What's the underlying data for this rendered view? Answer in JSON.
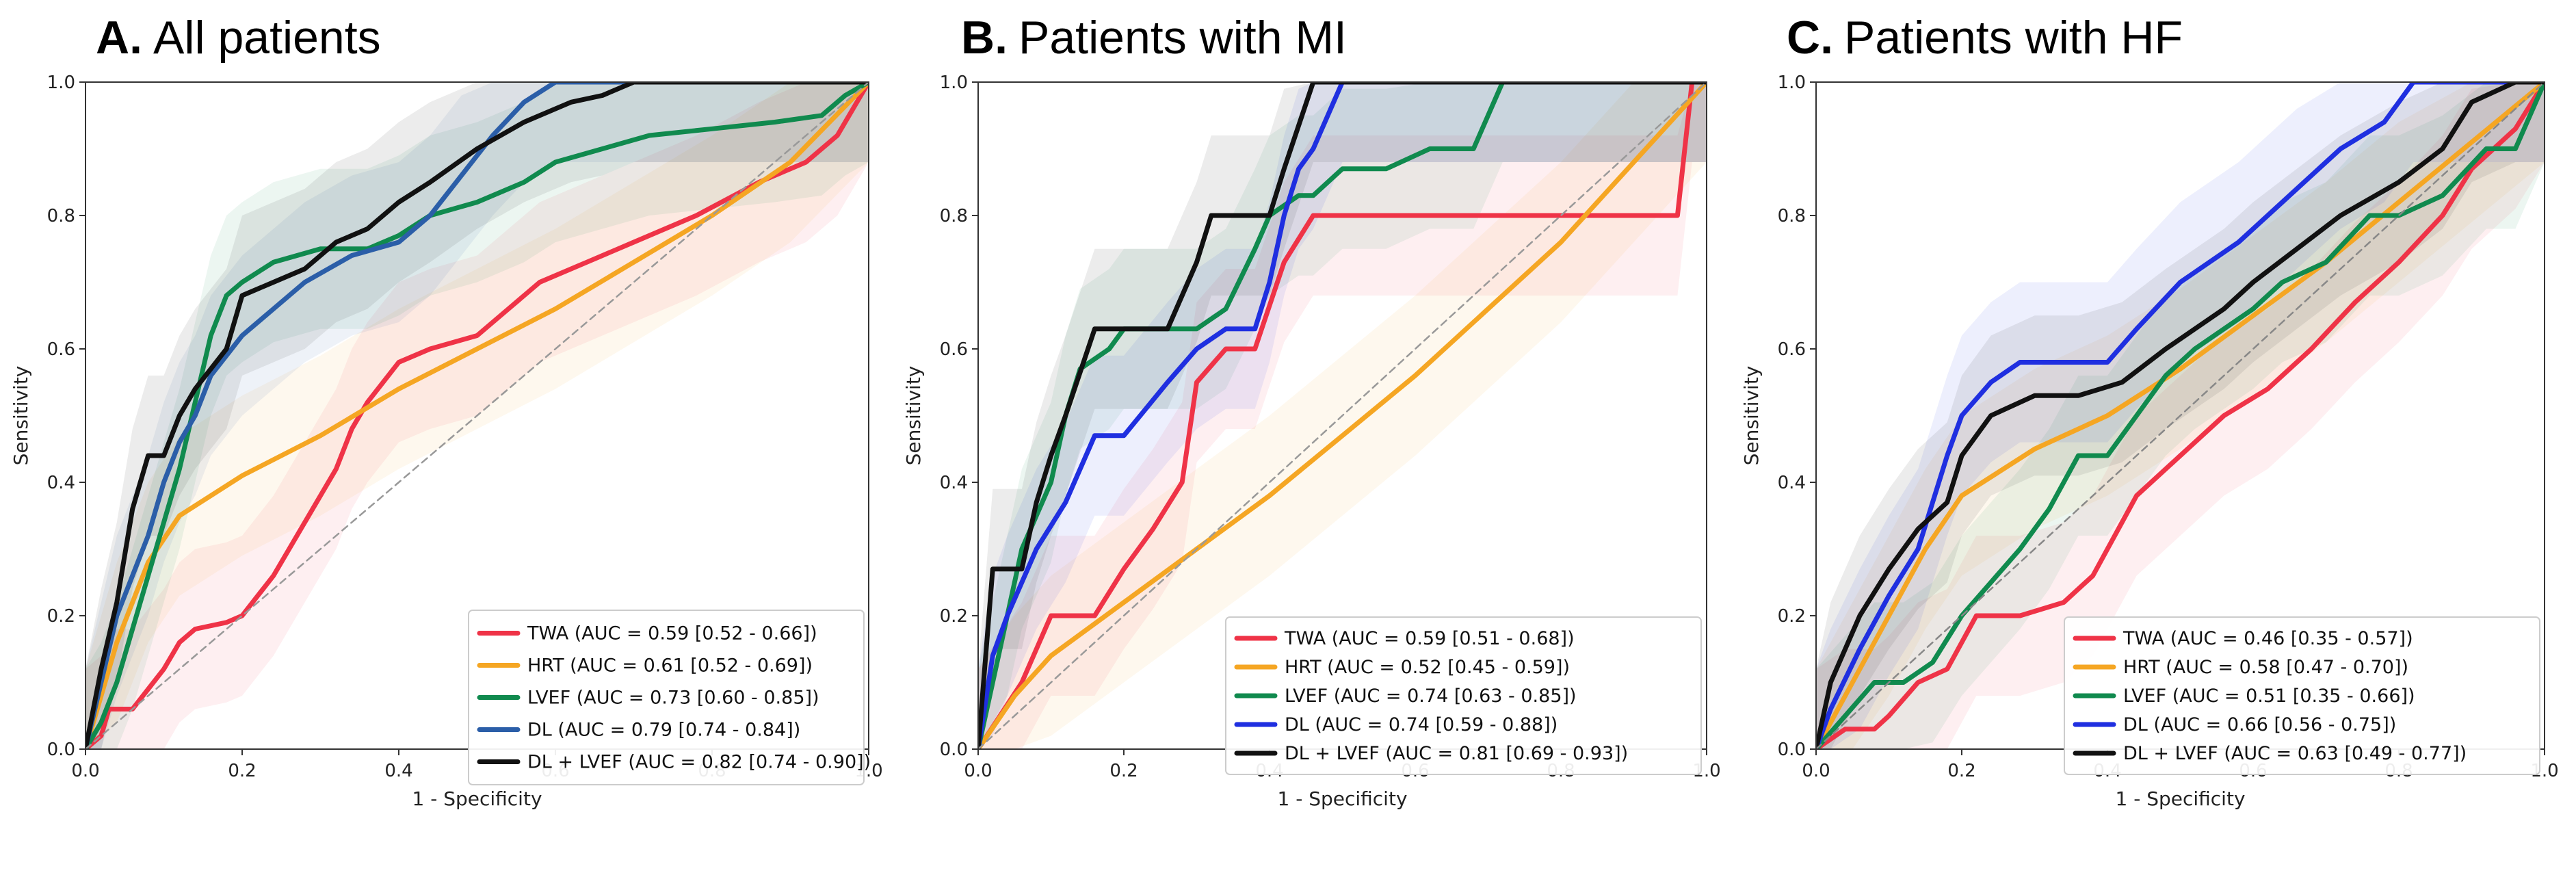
{
  "chart_data": [
    {
      "type": "line",
      "panel_letter": "A.",
      "title": "All patients",
      "xlabel": "1 - Specificity",
      "ylabel": "Sensitivity",
      "xlim": [
        0,
        1
      ],
      "ylim": [
        0,
        1
      ],
      "xticks": [
        "0.0",
        "0.2",
        "0.4",
        "0.6",
        "0.8",
        "1.0"
      ],
      "yticks": [
        "0.0",
        "0.2",
        "0.4",
        "0.6",
        "0.8",
        "1.0"
      ],
      "legend_position": "bottom-right",
      "series": [
        {
          "name": "TWA",
          "legend": "TWA (AUC = 0.59 [0.52 - 0.66])",
          "color": "#ef3347",
          "x": [
            0,
            0.02,
            0.03,
            0.06,
            0.08,
            0.1,
            0.12,
            0.14,
            0.18,
            0.2,
            0.24,
            0.28,
            0.32,
            0.34,
            0.36,
            0.4,
            0.44,
            0.5,
            0.54,
            0.58,
            0.64,
            0.7,
            0.78,
            0.86,
            0.92,
            0.96,
            1
          ],
          "y": [
            0,
            0.02,
            0.06,
            0.06,
            0.09,
            0.12,
            0.16,
            0.18,
            0.19,
            0.2,
            0.26,
            0.34,
            0.42,
            0.48,
            0.52,
            0.58,
            0.6,
            0.62,
            0.66,
            0.7,
            0.73,
            0.76,
            0.8,
            0.85,
            0.88,
            0.92,
            1
          ]
        },
        {
          "name": "HRT",
          "legend": "HRT (AUC = 0.61 [0.52 - 0.69])",
          "color": "#f5a623",
          "x": [
            0,
            0.04,
            0.08,
            0.12,
            0.2,
            0.3,
            0.4,
            0.5,
            0.6,
            0.7,
            0.8,
            0.9,
            1
          ],
          "y": [
            0,
            0.16,
            0.28,
            0.35,
            0.41,
            0.47,
            0.54,
            0.6,
            0.66,
            0.73,
            0.8,
            0.88,
            1
          ]
        },
        {
          "name": "LVEF",
          "legend": "LVEF (AUC = 0.73 [0.60 - 0.85])",
          "color": "#108a4e",
          "x": [
            0,
            0.02,
            0.04,
            0.06,
            0.08,
            0.1,
            0.12,
            0.14,
            0.16,
            0.18,
            0.2,
            0.24,
            0.3,
            0.36,
            0.4,
            0.44,
            0.5,
            0.56,
            0.6,
            0.66,
            0.72,
            0.8,
            0.88,
            0.94,
            0.97,
            1
          ],
          "y": [
            0,
            0.04,
            0.1,
            0.18,
            0.26,
            0.34,
            0.42,
            0.52,
            0.62,
            0.68,
            0.7,
            0.73,
            0.75,
            0.75,
            0.77,
            0.8,
            0.82,
            0.85,
            0.88,
            0.9,
            0.92,
            0.93,
            0.94,
            0.95,
            0.98,
            1
          ]
        },
        {
          "name": "DL",
          "legend": "DL (AUC = 0.79 [0.74 - 0.84])",
          "color": "#2b5ea8",
          "x": [
            0,
            0.02,
            0.04,
            0.06,
            0.08,
            0.1,
            0.12,
            0.14,
            0.16,
            0.2,
            0.24,
            0.28,
            0.34,
            0.4,
            0.44,
            0.48,
            0.52,
            0.56,
            0.6,
            0.7,
            0.8,
            0.9,
            1
          ],
          "y": [
            0,
            0.1,
            0.2,
            0.26,
            0.32,
            0.4,
            0.46,
            0.5,
            0.56,
            0.62,
            0.66,
            0.7,
            0.74,
            0.76,
            0.8,
            0.86,
            0.92,
            0.97,
            1,
            1,
            1,
            1,
            1
          ]
        },
        {
          "name": "DL + LVEF",
          "legend": "DL + LVEF (AUC = 0.82 [0.74 - 0.90])",
          "color": "#111111",
          "x": [
            0,
            0.02,
            0.04,
            0.06,
            0.08,
            0.1,
            0.12,
            0.14,
            0.18,
            0.2,
            0.24,
            0.28,
            0.32,
            0.36,
            0.4,
            0.44,
            0.5,
            0.56,
            0.62,
            0.66,
            0.7,
            0.8,
            0.9,
            1
          ],
          "y": [
            0,
            0.12,
            0.22,
            0.36,
            0.44,
            0.44,
            0.5,
            0.54,
            0.6,
            0.68,
            0.7,
            0.72,
            0.76,
            0.78,
            0.82,
            0.85,
            0.9,
            0.94,
            0.97,
            0.98,
            1,
            1,
            1,
            1
          ]
        },
        {
          "name": "chance",
          "legend": "",
          "color": "#999999",
          "dashed": true,
          "x": [
            0,
            1
          ],
          "y": [
            0,
            1
          ]
        }
      ]
    },
    {
      "type": "line",
      "panel_letter": "B.",
      "title": "Patients with MI",
      "xlabel": "1 - Specificity",
      "ylabel": "Sensitivity",
      "xlim": [
        0,
        1
      ],
      "ylim": [
        0,
        1
      ],
      "xticks": [
        "0.0",
        "0.2",
        "0.4",
        "0.6",
        "0.8",
        "1.0"
      ],
      "yticks": [
        "0.0",
        "0.2",
        "0.4",
        "0.6",
        "0.8",
        "1.0"
      ],
      "legend_position": "bottom-right",
      "series": [
        {
          "name": "TWA",
          "legend": "TWA (AUC = 0.59 [0.51 - 0.68])",
          "color": "#ef3347",
          "x": [
            0,
            0.03,
            0.06,
            0.1,
            0.16,
            0.2,
            0.24,
            0.28,
            0.3,
            0.34,
            0.38,
            0.42,
            0.46,
            0.6,
            0.8,
            0.96,
            0.98,
            1
          ],
          "y": [
            0,
            0.05,
            0.1,
            0.2,
            0.2,
            0.27,
            0.33,
            0.4,
            0.55,
            0.6,
            0.6,
            0.73,
            0.8,
            0.8,
            0.8,
            0.8,
            1,
            1
          ]
        },
        {
          "name": "HRT",
          "legend": "HRT (AUC = 0.52 [0.45 - 0.59])",
          "color": "#f5a623",
          "x": [
            0,
            0.05,
            0.1,
            0.2,
            0.3,
            0.4,
            0.5,
            0.6,
            0.7,
            0.8,
            0.9,
            1
          ],
          "y": [
            0,
            0.08,
            0.14,
            0.22,
            0.3,
            0.38,
            0.47,
            0.56,
            0.66,
            0.76,
            0.88,
            1
          ]
        },
        {
          "name": "LVEF",
          "legend": "LVEF (AUC = 0.74 [0.63 - 0.85])",
          "color": "#108a4e",
          "x": [
            0,
            0.04,
            0.06,
            0.1,
            0.12,
            0.14,
            0.18,
            0.2,
            0.26,
            0.3,
            0.34,
            0.38,
            0.4,
            0.44,
            0.46,
            0.5,
            0.56,
            0.62,
            0.68,
            0.72,
            0.76,
            0.8,
            0.9,
            1
          ],
          "y": [
            0,
            0.2,
            0.3,
            0.4,
            0.5,
            0.57,
            0.6,
            0.63,
            0.63,
            0.63,
            0.66,
            0.75,
            0.8,
            0.83,
            0.83,
            0.87,
            0.87,
            0.9,
            0.9,
            1,
            1,
            1,
            1,
            1
          ]
        },
        {
          "name": "DL",
          "legend": "DL (AUC = 0.74 [0.59 - 0.88])",
          "color": "#1f2fe0",
          "x": [
            0,
            0.02,
            0.04,
            0.08,
            0.12,
            0.16,
            0.2,
            0.26,
            0.3,
            0.34,
            0.38,
            0.4,
            0.42,
            0.44,
            0.46,
            0.5,
            0.6,
            0.8,
            1
          ],
          "y": [
            0,
            0.14,
            0.2,
            0.3,
            0.37,
            0.47,
            0.47,
            0.55,
            0.6,
            0.63,
            0.63,
            0.7,
            0.8,
            0.87,
            0.9,
            1,
            1,
            1,
            1
          ]
        },
        {
          "name": "DL + LVEF",
          "legend": "DL + LVEF (AUC = 0.81 [0.69 - 0.93])",
          "color": "#111111",
          "x": [
            0,
            0.02,
            0.06,
            0.08,
            0.1,
            0.12,
            0.16,
            0.22,
            0.26,
            0.3,
            0.32,
            0.34,
            0.4,
            0.42,
            0.46,
            0.5,
            0.6,
            0.8,
            1
          ],
          "y": [
            0,
            0.27,
            0.27,
            0.37,
            0.44,
            0.5,
            0.63,
            0.63,
            0.63,
            0.73,
            0.8,
            0.8,
            0.8,
            0.87,
            1,
            1,
            1,
            1,
            1
          ]
        },
        {
          "name": "chance",
          "legend": "",
          "color": "#999999",
          "dashed": true,
          "x": [
            0,
            1
          ],
          "y": [
            0,
            1
          ]
        }
      ]
    },
    {
      "type": "line",
      "panel_letter": "C.",
      "title": "Patients with HF",
      "xlabel": "1 - Specificity",
      "ylabel": "Sensitivity",
      "xlim": [
        0,
        1
      ],
      "ylim": [
        0,
        1
      ],
      "xticks": [
        "0.0",
        "0.2",
        "0.4",
        "0.6",
        "0.8",
        "1.0"
      ],
      "yticks": [
        "0.0",
        "0.2",
        "0.4",
        "0.6",
        "0.8",
        "1.0"
      ],
      "legend_position": "bottom-right",
      "series": [
        {
          "name": "TWA",
          "legend": "TWA (AUC = 0.46 [0.35 - 0.57])",
          "color": "#ef3347",
          "x": [
            0,
            0.04,
            0.08,
            0.1,
            0.14,
            0.18,
            0.22,
            0.28,
            0.34,
            0.38,
            0.4,
            0.44,
            0.5,
            0.56,
            0.62,
            0.68,
            0.74,
            0.8,
            0.86,
            0.9,
            0.96,
            1
          ],
          "y": [
            0,
            0.03,
            0.03,
            0.05,
            0.1,
            0.12,
            0.2,
            0.2,
            0.22,
            0.26,
            0.3,
            0.38,
            0.44,
            0.5,
            0.54,
            0.6,
            0.67,
            0.73,
            0.8,
            0.87,
            0.93,
            1
          ]
        },
        {
          "name": "HRT",
          "legend": "HRT (AUC = 0.58 [0.47 - 0.70])",
          "color": "#f5a623",
          "x": [
            0,
            0.05,
            0.1,
            0.15,
            0.2,
            0.3,
            0.4,
            0.5,
            0.6,
            0.7,
            0.8,
            0.9,
            1
          ],
          "y": [
            0,
            0.1,
            0.2,
            0.3,
            0.38,
            0.45,
            0.5,
            0.57,
            0.65,
            0.73,
            0.82,
            0.91,
            1
          ]
        },
        {
          "name": "LVEF",
          "legend": "LVEF (AUC = 0.51 [0.35 - 0.66])",
          "color": "#108a4e",
          "x": [
            0,
            0.04,
            0.08,
            0.12,
            0.16,
            0.2,
            0.24,
            0.28,
            0.32,
            0.36,
            0.4,
            0.44,
            0.48,
            0.52,
            0.56,
            0.6,
            0.64,
            0.7,
            0.76,
            0.8,
            0.86,
            0.92,
            0.96,
            1
          ],
          "y": [
            0,
            0.05,
            0.1,
            0.1,
            0.13,
            0.2,
            0.25,
            0.3,
            0.36,
            0.44,
            0.44,
            0.5,
            0.56,
            0.6,
            0.63,
            0.66,
            0.7,
            0.73,
            0.8,
            0.8,
            0.83,
            0.9,
            0.9,
            1
          ]
        },
        {
          "name": "DL",
          "legend": "DL (AUC = 0.66 [0.56 - 0.75])",
          "color": "#1f2fe0",
          "x": [
            0,
            0.02,
            0.06,
            0.1,
            0.14,
            0.16,
            0.18,
            0.2,
            0.24,
            0.28,
            0.34,
            0.4,
            0.44,
            0.5,
            0.54,
            0.58,
            0.62,
            0.66,
            0.72,
            0.78,
            0.82,
            0.86,
            0.9,
            1
          ],
          "y": [
            0,
            0.06,
            0.15,
            0.23,
            0.3,
            0.37,
            0.44,
            0.5,
            0.55,
            0.58,
            0.58,
            0.58,
            0.63,
            0.7,
            0.73,
            0.76,
            0.8,
            0.84,
            0.9,
            0.94,
            1,
            1,
            1,
            1
          ]
        },
        {
          "name": "DL + LVEF",
          "legend": "DL + LVEF (AUC = 0.63 [0.49 - 0.77])",
          "color": "#111111",
          "x": [
            0,
            0.02,
            0.06,
            0.1,
            0.14,
            0.18,
            0.2,
            0.24,
            0.3,
            0.36,
            0.42,
            0.48,
            0.52,
            0.56,
            0.6,
            0.66,
            0.72,
            0.8,
            0.86,
            0.9,
            0.96,
            1
          ],
          "y": [
            0,
            0.1,
            0.2,
            0.27,
            0.33,
            0.37,
            0.44,
            0.5,
            0.53,
            0.53,
            0.55,
            0.6,
            0.63,
            0.66,
            0.7,
            0.75,
            0.8,
            0.85,
            0.9,
            0.97,
            1,
            1
          ]
        },
        {
          "name": "chance",
          "legend": "",
          "color": "#888888",
          "dashed": true,
          "x": [
            0,
            1
          ],
          "y": [
            0,
            1
          ]
        }
      ]
    }
  ]
}
